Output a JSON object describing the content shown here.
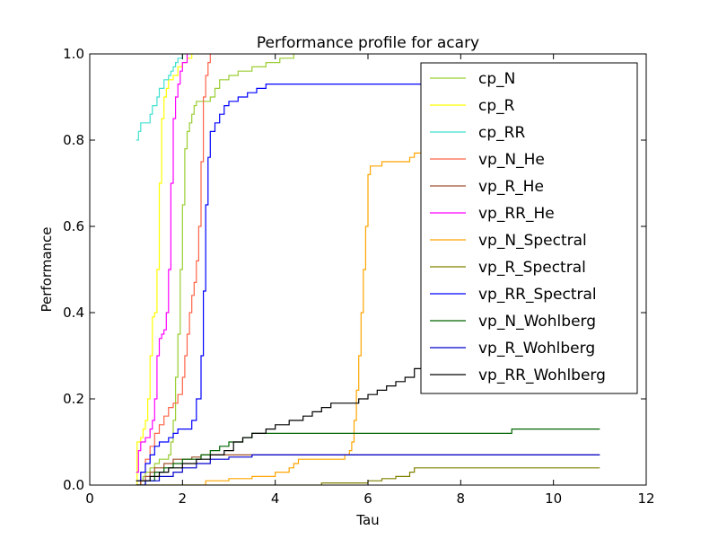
{
  "chart_data": {
    "type": "line",
    "title": "Performance profile for acary",
    "xlabel": "Tau",
    "ylabel": "Performance",
    "xlim": [
      0,
      12
    ],
    "ylim": [
      0,
      1.0
    ],
    "x_ticks": [
      "0",
      "2",
      "4",
      "6",
      "8",
      "10",
      "12"
    ],
    "y_ticks": [
      "0.0",
      "0.2",
      "0.4",
      "0.6",
      "0.8",
      "1.0"
    ],
    "grid": false,
    "legend_position": "top-right",
    "series": [
      {
        "name": "cp_N",
        "color": "#9acd32",
        "points": [
          [
            1.0,
            0.0
          ],
          [
            1.05,
            0.0
          ],
          [
            1.1,
            0.01
          ],
          [
            1.15,
            0.02
          ],
          [
            1.2,
            0.03
          ],
          [
            1.3,
            0.04
          ],
          [
            1.4,
            0.05
          ],
          [
            1.5,
            0.06
          ],
          [
            1.6,
            0.06
          ],
          [
            1.7,
            0.07
          ],
          [
            1.75,
            0.1
          ],
          [
            1.8,
            0.15
          ],
          [
            1.85,
            0.25
          ],
          [
            1.9,
            0.35
          ],
          [
            1.95,
            0.5
          ],
          [
            2.0,
            0.65
          ],
          [
            2.05,
            0.78
          ],
          [
            2.1,
            0.82
          ],
          [
            2.15,
            0.84
          ],
          [
            2.2,
            0.86
          ],
          [
            2.25,
            0.88
          ],
          [
            2.3,
            0.89
          ],
          [
            2.5,
            0.89
          ],
          [
            2.6,
            0.9
          ],
          [
            2.7,
            0.92
          ],
          [
            2.8,
            0.94
          ],
          [
            3.0,
            0.95
          ],
          [
            3.2,
            0.96
          ],
          [
            3.5,
            0.97
          ],
          [
            3.8,
            0.98
          ],
          [
            4.1,
            0.99
          ],
          [
            4.4,
            1.0
          ]
        ]
      },
      {
        "name": "cp_R",
        "color": "#ffff00",
        "points": [
          [
            1.0,
            0.0
          ],
          [
            1.02,
            0.1
          ],
          [
            1.1,
            0.11
          ],
          [
            1.15,
            0.13
          ],
          [
            1.2,
            0.15
          ],
          [
            1.25,
            0.2
          ],
          [
            1.3,
            0.3
          ],
          [
            1.35,
            0.39
          ],
          [
            1.4,
            0.4
          ],
          [
            1.45,
            0.5
          ],
          [
            1.5,
            0.7
          ],
          [
            1.55,
            0.85
          ],
          [
            1.6,
            0.9
          ],
          [
            1.65,
            0.92
          ],
          [
            1.7,
            0.94
          ],
          [
            1.8,
            0.95
          ],
          [
            1.9,
            0.97
          ],
          [
            2.0,
            0.98
          ],
          [
            2.1,
            0.99
          ],
          [
            2.2,
            1.0
          ]
        ]
      },
      {
        "name": "cp_RR",
        "color": "#40e0d0",
        "points": [
          [
            1.0,
            0.8
          ],
          [
            1.05,
            0.82
          ],
          [
            1.1,
            0.84
          ],
          [
            1.25,
            0.84
          ],
          [
            1.3,
            0.86
          ],
          [
            1.35,
            0.88
          ],
          [
            1.45,
            0.9
          ],
          [
            1.5,
            0.92
          ],
          [
            1.6,
            0.94
          ],
          [
            1.7,
            0.95
          ],
          [
            1.75,
            0.96
          ],
          [
            1.8,
            0.97
          ],
          [
            1.85,
            0.98
          ],
          [
            1.9,
            0.99
          ],
          [
            2.0,
            1.0
          ]
        ]
      },
      {
        "name": "vp_N_He",
        "color": "#ff6347",
        "points": [
          [
            1.0,
            0.0
          ],
          [
            1.1,
            0.03
          ],
          [
            1.2,
            0.06
          ],
          [
            1.3,
            0.09
          ],
          [
            1.4,
            0.12
          ],
          [
            1.5,
            0.14
          ],
          [
            1.6,
            0.16
          ],
          [
            1.7,
            0.18
          ],
          [
            1.8,
            0.19
          ],
          [
            1.9,
            0.21
          ],
          [
            2.0,
            0.25
          ],
          [
            2.05,
            0.3
          ],
          [
            2.1,
            0.35
          ],
          [
            2.15,
            0.4
          ],
          [
            2.2,
            0.44
          ],
          [
            2.25,
            0.47
          ],
          [
            2.3,
            0.52
          ],
          [
            2.35,
            0.6
          ],
          [
            2.4,
            0.75
          ],
          [
            2.45,
            0.9
          ],
          [
            2.5,
            0.95
          ],
          [
            2.55,
            0.98
          ],
          [
            2.6,
            1.0
          ]
        ]
      },
      {
        "name": "vp_R_He",
        "color": "#a0522d",
        "points": [
          [
            1.0,
            0.0
          ],
          [
            1.1,
            0.01
          ],
          [
            1.2,
            0.02
          ],
          [
            1.3,
            0.03
          ],
          [
            1.4,
            0.04
          ],
          [
            1.6,
            0.05
          ],
          [
            1.8,
            0.06
          ],
          [
            2.0,
            0.06
          ],
          [
            2.2,
            0.065
          ],
          [
            2.4,
            0.07
          ],
          [
            11.0,
            0.07
          ]
        ]
      },
      {
        "name": "vp_RR_He",
        "color": "#ff00ff",
        "points": [
          [
            1.0,
            0.03
          ],
          [
            1.05,
            0.08
          ],
          [
            1.1,
            0.1
          ],
          [
            1.2,
            0.11
          ],
          [
            1.3,
            0.13
          ],
          [
            1.35,
            0.15
          ],
          [
            1.4,
            0.2
          ],
          [
            1.45,
            0.3
          ],
          [
            1.5,
            0.34
          ],
          [
            1.55,
            0.35
          ],
          [
            1.6,
            0.36
          ],
          [
            1.65,
            0.4
          ],
          [
            1.7,
            0.5
          ],
          [
            1.75,
            0.7
          ],
          [
            1.8,
            0.85
          ],
          [
            1.85,
            0.9
          ],
          [
            1.9,
            0.93
          ],
          [
            1.95,
            0.96
          ],
          [
            2.0,
            0.98
          ],
          [
            2.1,
            1.0
          ]
        ]
      },
      {
        "name": "vp_N_Spectral",
        "color": "#ffa500",
        "points": [
          [
            1.0,
            0.0
          ],
          [
            2.0,
            0.0
          ],
          [
            2.5,
            0.01
          ],
          [
            3.0,
            0.015
          ],
          [
            3.5,
            0.02
          ],
          [
            4.0,
            0.03
          ],
          [
            4.3,
            0.04
          ],
          [
            4.4,
            0.05
          ],
          [
            4.5,
            0.06
          ],
          [
            5.4,
            0.06
          ],
          [
            5.5,
            0.07
          ],
          [
            5.6,
            0.08
          ],
          [
            5.65,
            0.1
          ],
          [
            5.7,
            0.15
          ],
          [
            5.75,
            0.22
          ],
          [
            5.8,
            0.3
          ],
          [
            5.85,
            0.4
          ],
          [
            5.9,
            0.5
          ],
          [
            5.95,
            0.6
          ],
          [
            6.0,
            0.72
          ],
          [
            6.05,
            0.74
          ],
          [
            6.3,
            0.75
          ],
          [
            6.9,
            0.76
          ],
          [
            7.0,
            0.77
          ],
          [
            7.5,
            0.78
          ],
          [
            11.0,
            0.78
          ]
        ]
      },
      {
        "name": "vp_R_Spectral",
        "color": "#808000",
        "points": [
          [
            1.0,
            0.0
          ],
          [
            4.6,
            0.0
          ],
          [
            5.0,
            0.005
          ],
          [
            6.0,
            0.01
          ],
          [
            6.3,
            0.015
          ],
          [
            6.6,
            0.02
          ],
          [
            6.9,
            0.03
          ],
          [
            7.0,
            0.04
          ],
          [
            8.0,
            0.04
          ],
          [
            9.0,
            0.04
          ],
          [
            11.0,
            0.04
          ]
        ]
      },
      {
        "name": "vp_RR_Spectral",
        "color": "#0000ff",
        "points": [
          [
            1.0,
            0.01
          ],
          [
            1.1,
            0.03
          ],
          [
            1.2,
            0.05
          ],
          [
            1.3,
            0.07
          ],
          [
            1.4,
            0.09
          ],
          [
            1.5,
            0.1
          ],
          [
            1.7,
            0.11
          ],
          [
            1.8,
            0.12
          ],
          [
            1.9,
            0.13
          ],
          [
            2.1,
            0.13
          ],
          [
            2.2,
            0.15
          ],
          [
            2.3,
            0.2
          ],
          [
            2.4,
            0.3
          ],
          [
            2.45,
            0.45
          ],
          [
            2.5,
            0.65
          ],
          [
            2.55,
            0.76
          ],
          [
            2.6,
            0.82
          ],
          [
            2.7,
            0.84
          ],
          [
            2.8,
            0.86
          ],
          [
            2.9,
            0.88
          ],
          [
            3.0,
            0.89
          ],
          [
            3.2,
            0.9
          ],
          [
            3.4,
            0.91
          ],
          [
            3.6,
            0.92
          ],
          [
            3.8,
            0.93
          ],
          [
            11.0,
            0.93
          ]
        ]
      },
      {
        "name": "vp_N_Wohlberg",
        "color": "#006400",
        "points": [
          [
            1.0,
            0.0
          ],
          [
            1.2,
            0.01
          ],
          [
            1.4,
            0.03
          ],
          [
            1.6,
            0.04
          ],
          [
            1.8,
            0.05
          ],
          [
            2.0,
            0.06
          ],
          [
            2.2,
            0.06
          ],
          [
            2.4,
            0.07
          ],
          [
            2.6,
            0.08
          ],
          [
            2.8,
            0.09
          ],
          [
            3.0,
            0.1
          ],
          [
            3.3,
            0.11
          ],
          [
            3.5,
            0.12
          ],
          [
            4.0,
            0.12
          ],
          [
            5.0,
            0.12
          ],
          [
            6.0,
            0.12
          ],
          [
            7.0,
            0.12
          ],
          [
            9.0,
            0.12
          ],
          [
            9.1,
            0.13
          ],
          [
            11.0,
            0.13
          ]
        ]
      },
      {
        "name": "vp_R_Wohlberg",
        "color": "#0000cd",
        "points": [
          [
            1.0,
            0.0
          ],
          [
            1.2,
            0.01
          ],
          [
            1.5,
            0.02
          ],
          [
            1.8,
            0.03
          ],
          [
            2.0,
            0.04
          ],
          [
            2.3,
            0.05
          ],
          [
            2.6,
            0.06
          ],
          [
            3.0,
            0.065
          ],
          [
            3.5,
            0.07
          ],
          [
            11.0,
            0.07
          ]
        ]
      },
      {
        "name": "vp_RR_Wohlberg",
        "color": "#000000",
        "points": [
          [
            1.0,
            0.01
          ],
          [
            1.3,
            0.02
          ],
          [
            1.5,
            0.03
          ],
          [
            1.7,
            0.04
          ],
          [
            2.0,
            0.05
          ],
          [
            2.3,
            0.06
          ],
          [
            2.6,
            0.07
          ],
          [
            2.9,
            0.08
          ],
          [
            3.1,
            0.1
          ],
          [
            3.3,
            0.11
          ],
          [
            3.5,
            0.12
          ],
          [
            3.8,
            0.13
          ],
          [
            4.0,
            0.14
          ],
          [
            4.3,
            0.15
          ],
          [
            4.6,
            0.16
          ],
          [
            4.8,
            0.17
          ],
          [
            5.0,
            0.18
          ],
          [
            5.2,
            0.19
          ],
          [
            5.5,
            0.19
          ],
          [
            5.8,
            0.2
          ],
          [
            6.0,
            0.21
          ],
          [
            6.2,
            0.22
          ],
          [
            6.4,
            0.23
          ],
          [
            6.6,
            0.24
          ],
          [
            6.8,
            0.25
          ],
          [
            7.0,
            0.27
          ],
          [
            7.2,
            0.28
          ],
          [
            7.5,
            0.28
          ]
        ]
      }
    ]
  }
}
